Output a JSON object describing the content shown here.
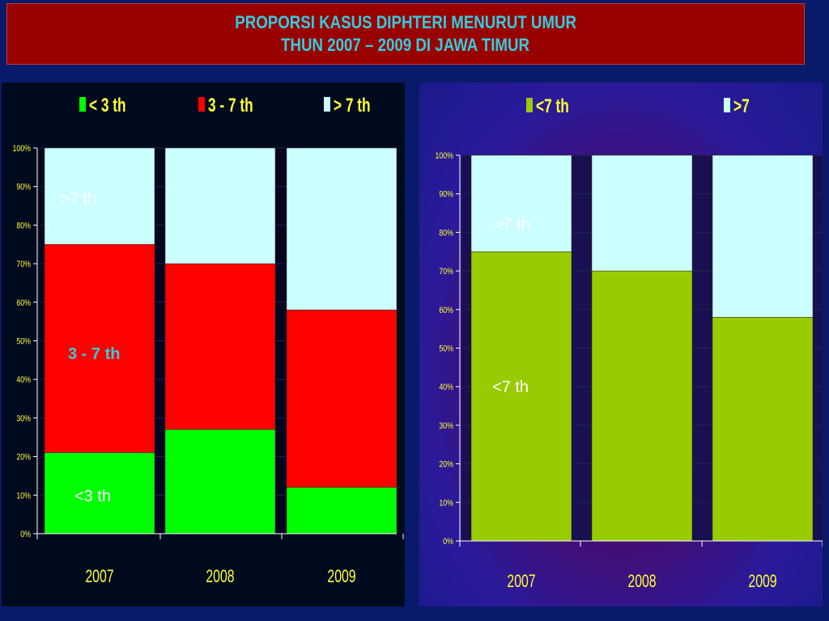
{
  "header": {
    "line1": "PROPORSI KASUS DIPHTERI MENURUT UMUR",
    "line2": "THUN 2007 – 2009 DI JAWA TIMUR"
  },
  "chart_data": [
    {
      "type": "bar",
      "stacked": true,
      "percent": true,
      "categories": [
        "2007",
        "2008",
        "2009"
      ],
      "series": [
        {
          "name": "< 3 th",
          "values": [
            21,
            27,
            12
          ],
          "color": "#00ff00"
        },
        {
          "name": "3 - 7 th",
          "values": [
            54,
            43,
            46
          ],
          "color": "#ff0000"
        },
        {
          "name": "> 7 th",
          "values": [
            25,
            30,
            42
          ],
          "color": "#ccffff"
        }
      ],
      "yticks": [
        "0%",
        "10%",
        "20%",
        "30%",
        "40%",
        "50%",
        "60%",
        "70%",
        "80%",
        "90%",
        "100%"
      ],
      "ylim": [
        0,
        100
      ],
      "legend_position": "top",
      "annotations": [
        ">7 th",
        "3 - 7 th",
        "<3 th"
      ],
      "annotation_colors": [
        "#ffffff",
        "#33ccdd",
        "#ffffff"
      ]
    },
    {
      "type": "bar",
      "stacked": true,
      "percent": true,
      "categories": [
        "2007",
        "2008",
        "2009"
      ],
      "series": [
        {
          "name": "<7 th",
          "values": [
            75,
            70,
            58
          ],
          "color": "#99cc00"
        },
        {
          "name": ">7",
          "values": [
            25,
            30,
            42
          ],
          "color": "#ccffff"
        }
      ],
      "yticks": [
        "0%",
        "10%",
        "20%",
        "30%",
        "40%",
        "50%",
        "60%",
        "70%",
        "80%",
        "90%",
        "100%"
      ],
      "ylim": [
        0,
        100
      ],
      "legend_position": "top",
      "annotations": [
        ">7 th",
        "<7 th"
      ],
      "annotation_colors": [
        "#ffffff",
        "#ffffff"
      ]
    }
  ]
}
